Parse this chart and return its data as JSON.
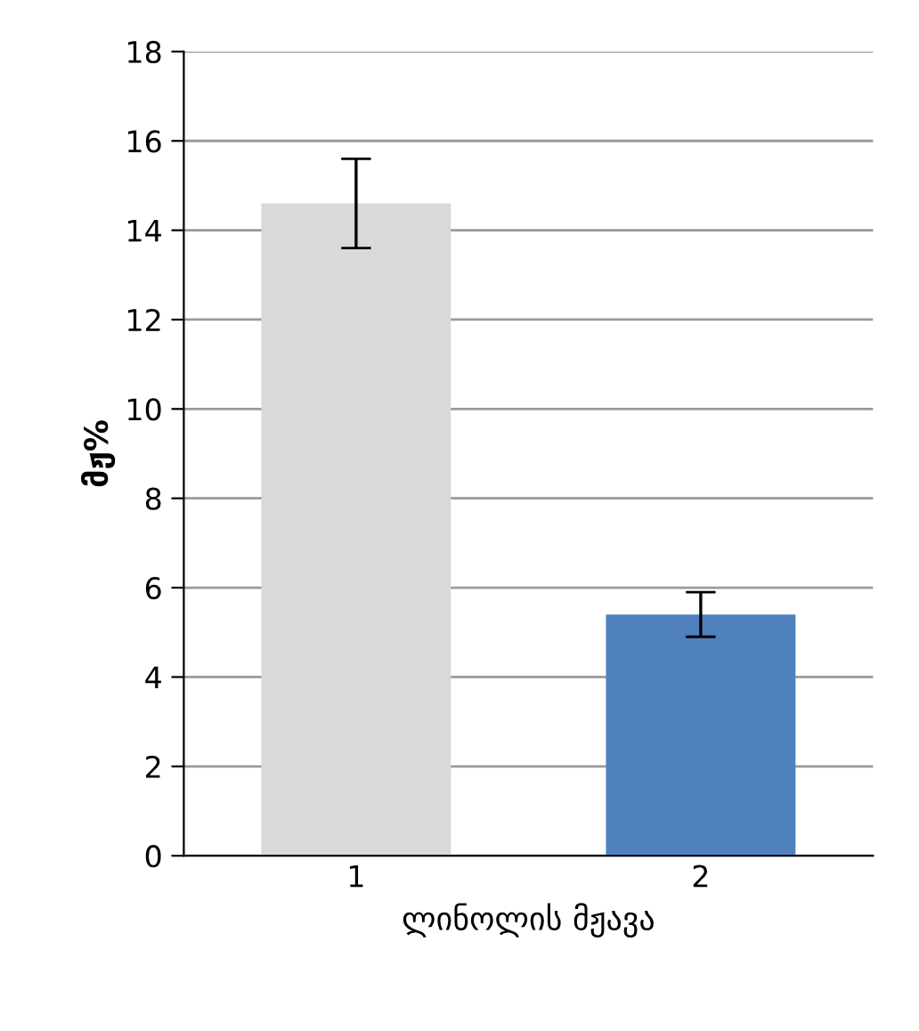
{
  "chart_data": {
    "type": "bar",
    "categories": [
      "1",
      "2"
    ],
    "values": [
      14.6,
      5.4
    ],
    "colors": [
      "#d9d9d9",
      "#4f81bd"
    ],
    "errors": [
      1.0,
      0.5
    ],
    "xlabel": "ლინოლის მჟავა",
    "ylabel": "მჟ%",
    "ylim": [
      0,
      18
    ],
    "yticks": [
      0,
      2,
      4,
      6,
      8,
      10,
      12,
      14,
      16,
      18
    ],
    "grid": "y"
  }
}
